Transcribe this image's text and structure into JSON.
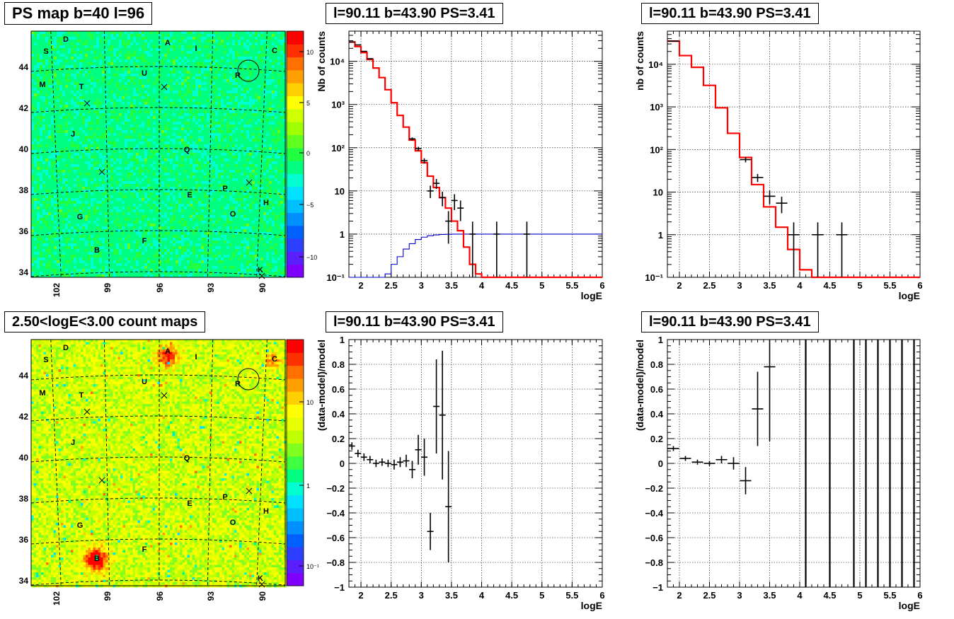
{
  "panels": {
    "p1_title": "PS map b=40 l=96",
    "p2_title": "l=90.11 b=43.90 PS=3.41",
    "p3_title": "l=90.11 b=43.90 PS=3.41",
    "p4_title": "2.50<logE<3.00 count maps",
    "p5_title": "l=90.11 b=43.90 PS=3.41",
    "p6_title": "l=90.11 b=43.90 PS=3.41"
  },
  "colors": {
    "data": "#000000",
    "model": "#ff0000",
    "exposure": "#0000cc",
    "grid": "#000000"
  },
  "maps": {
    "lat_ticks": [
      "34",
      "36",
      "38",
      "40",
      "42",
      "44"
    ],
    "lon_ticks": [
      "102",
      "99",
      "96",
      "93",
      "90"
    ],
    "ps_scale_ticks": [
      "10",
      "5",
      "0",
      "−5",
      "−10"
    ],
    "count_scale_ticks": [
      "10",
      "1",
      "10⁻¹"
    ],
    "sources": [
      "A",
      "B",
      "C",
      "D",
      "E",
      "F",
      "G",
      "H",
      "I",
      "J",
      "K",
      "M",
      "O",
      "P",
      "Q",
      "R",
      "S",
      "T",
      "U"
    ]
  },
  "chart_data": [
    {
      "type": "line",
      "panel": "p2",
      "title": "l=90.11 b=43.90 PS=3.41",
      "xlabel": "logE",
      "ylabel": "Nb of counts",
      "xlim": [
        1.8,
        6.0
      ],
      "ylim": [
        0.1,
        50000
      ],
      "yscale": "log",
      "grid": true,
      "x_ticks": [
        "2",
        "2.5",
        "3",
        "3.5",
        "4",
        "4.5",
        "5",
        "5.5",
        "6"
      ],
      "y_ticks": [
        "10⁻¹",
        "1",
        "10",
        "10²",
        "10³",
        "10⁴"
      ],
      "bin_edges": [
        1.8,
        1.9,
        2.0,
        2.1,
        2.2,
        2.3,
        2.4,
        2.5,
        2.6,
        2.7,
        2.8,
        2.9,
        3.0,
        3.1,
        3.2,
        3.3,
        3.4,
        3.5,
        3.6,
        3.7,
        3.8,
        3.9,
        4.0,
        6.0
      ],
      "series": [
        {
          "values": [
            28000,
            22000,
            16000,
            11000,
            7000,
            4200,
            2200,
            1100,
            560,
            300,
            150,
            85,
            45,
            22,
            12,
            7,
            4,
            2,
            1.2,
            0.5,
            0.2,
            0.12,
            0.1
          ]
        },
        {
          "values": [
            0.1,
            0.1,
            0.1,
            0.1,
            0.1,
            0.1,
            0.12,
            0.2,
            0.3,
            0.45,
            0.6,
            0.75,
            0.85,
            0.92,
            0.96,
            0.98,
            0.99,
            1,
            1,
            1,
            1,
            1,
            1
          ]
        }
      ],
      "points": [
        {
          "x": 1.85,
          "y": 28000,
          "yerr": 170
        },
        {
          "x": 1.95,
          "y": 24000,
          "yerr": 150
        },
        {
          "x": 2.05,
          "y": 17000,
          "yerr": 130
        },
        {
          "x": 2.15,
          "y": 11500,
          "yerr": 110
        },
        {
          "x": 2.85,
          "y": 160,
          "yerr": 13
        },
        {
          "x": 2.95,
          "y": 95,
          "yerr": 10
        },
        {
          "x": 3.05,
          "y": 50,
          "yerr": 7
        },
        {
          "x": 3.15,
          "y": 10,
          "yerr": 3.2
        },
        {
          "x": 3.25,
          "y": 15,
          "yerr": 3.9
        },
        {
          "x": 3.35,
          "y": 7,
          "yerr": 2.6
        },
        {
          "x": 3.45,
          "y": 2,
          "yerr": 1.4
        },
        {
          "x": 3.55,
          "y": 6,
          "yerr": 2.4
        },
        {
          "x": 3.65,
          "y": 4,
          "yerr": 2
        },
        {
          "x": 3.85,
          "y": 1,
          "yerr": 0.95
        },
        {
          "x": 4.25,
          "y": 1,
          "yerr": 0.95
        },
        {
          "x": 4.75,
          "y": 1,
          "yerr": 0.95
        }
      ]
    },
    {
      "type": "line",
      "panel": "p3",
      "title": "l=90.11 b=43.90 PS=3.41",
      "xlabel": "logE",
      "ylabel": "nb of counts",
      "xlim": [
        1.8,
        6.0
      ],
      "ylim": [
        0.1,
        60000
      ],
      "yscale": "log",
      "grid": true,
      "x_ticks": [
        "2",
        "2.5",
        "3",
        "3.5",
        "4",
        "4.5",
        "5",
        "5.5",
        "6"
      ],
      "y_ticks": [
        "10⁻¹",
        "1",
        "10",
        "10²",
        "10³",
        "10⁴"
      ],
      "bin_edges": [
        1.8,
        2.0,
        2.2,
        2.4,
        2.6,
        2.8,
        3.0,
        3.2,
        3.4,
        3.6,
        3.8,
        4.0,
        4.2,
        6.0
      ],
      "series": [
        {
          "values": [
            35000,
            16000,
            8500,
            3200,
            950,
            240,
            65,
            15,
            4.5,
            1.5,
            0.45,
            0.15,
            0.1
          ]
        }
      ],
      "points": [
        {
          "x": 1.9,
          "y": 35000,
          "yerr": 200
        },
        {
          "x": 3.1,
          "y": 58,
          "yerr": 8
        },
        {
          "x": 3.3,
          "y": 22,
          "yerr": 4.7
        },
        {
          "x": 3.5,
          "y": 8,
          "yerr": 2.8
        },
        {
          "x": 3.7,
          "y": 5.5,
          "yerr": 2.3
        },
        {
          "x": 3.9,
          "y": 1,
          "yerr": 0.95
        },
        {
          "x": 4.3,
          "y": 1,
          "yerr": 0.95
        },
        {
          "x": 4.7,
          "y": 1,
          "yerr": 0.95
        }
      ]
    },
    {
      "type": "scatter",
      "panel": "p5",
      "title": "l=90.11 b=43.90 PS=3.41",
      "xlabel": "logE",
      "ylabel": "(data-model)/model",
      "xlim": [
        1.8,
        6.0
      ],
      "ylim": [
        -1,
        1
      ],
      "grid": true,
      "x_ticks": [
        "2",
        "2.5",
        "3",
        "3.5",
        "4",
        "4.5",
        "5",
        "5.5",
        "6"
      ],
      "y_ticks": [
        "−1",
        "−0.8",
        "−0.6",
        "−0.4",
        "−0.2",
        "0",
        "0.2",
        "0.4",
        "0.6",
        "0.8",
        "1"
      ],
      "points": [
        {
          "x": 1.85,
          "y": 0.14,
          "yerr": 0.03
        },
        {
          "x": 1.95,
          "y": 0.08,
          "yerr": 0.03
        },
        {
          "x": 2.05,
          "y": 0.05,
          "yerr": 0.03
        },
        {
          "x": 2.15,
          "y": 0.03,
          "yerr": 0.03
        },
        {
          "x": 2.25,
          "y": 0.0,
          "yerr": 0.03
        },
        {
          "x": 2.35,
          "y": 0.01,
          "yerr": 0.03
        },
        {
          "x": 2.45,
          "y": 0.0,
          "yerr": 0.03
        },
        {
          "x": 2.55,
          "y": -0.01,
          "yerr": 0.04
        },
        {
          "x": 2.65,
          "y": 0.01,
          "yerr": 0.04
        },
        {
          "x": 2.75,
          "y": 0.02,
          "yerr": 0.05
        },
        {
          "x": 2.85,
          "y": -0.05,
          "yerr": 0.07
        },
        {
          "x": 2.95,
          "y": 0.11,
          "yerr": 0.12
        },
        {
          "x": 3.05,
          "y": 0.05,
          "yerr": 0.15
        },
        {
          "x": 3.15,
          "y": -0.55,
          "yerr": 0.15
        },
        {
          "x": 3.25,
          "y": 0.46,
          "yerr": 0.38
        },
        {
          "x": 3.35,
          "y": 0.39,
          "yerr": 0.52
        },
        {
          "x": 3.45,
          "y": -0.35,
          "yerr": 0.45
        }
      ]
    },
    {
      "type": "scatter",
      "panel": "p6",
      "title": "l=90.11 b=43.90 PS=3.41",
      "xlabel": "logE",
      "ylabel": "(data-model)/model",
      "xlim": [
        1.8,
        6.0
      ],
      "ylim": [
        -1,
        1
      ],
      "grid": true,
      "x_ticks": [
        "2",
        "2.5",
        "3",
        "3.5",
        "4",
        "4.5",
        "5",
        "5.5",
        "6"
      ],
      "y_ticks": [
        "−1",
        "−0.8",
        "−0.6",
        "−0.4",
        "−0.2",
        "0",
        "0.2",
        "0.4",
        "0.6",
        "0.8",
        "1"
      ],
      "points": [
        {
          "x": 1.9,
          "y": 0.12,
          "yerr": 0.02
        },
        {
          "x": 2.1,
          "y": 0.04,
          "yerr": 0.02
        },
        {
          "x": 2.3,
          "y": 0.01,
          "yerr": 0.02
        },
        {
          "x": 2.5,
          "y": 0.0,
          "yerr": 0.02
        },
        {
          "x": 2.7,
          "y": 0.03,
          "yerr": 0.03
        },
        {
          "x": 2.9,
          "y": 0.0,
          "yerr": 0.05
        },
        {
          "x": 3.1,
          "y": -0.14,
          "yerr": 0.11
        },
        {
          "x": 3.3,
          "y": 0.44,
          "yerr": 0.3
        },
        {
          "x": 3.5,
          "y": 0.78,
          "yerr": 0.6
        }
      ],
      "vertical_bars_x": [
        4.1,
        4.5,
        4.9,
        5.1,
        5.3,
        5.5,
        5.7,
        5.9
      ]
    }
  ]
}
